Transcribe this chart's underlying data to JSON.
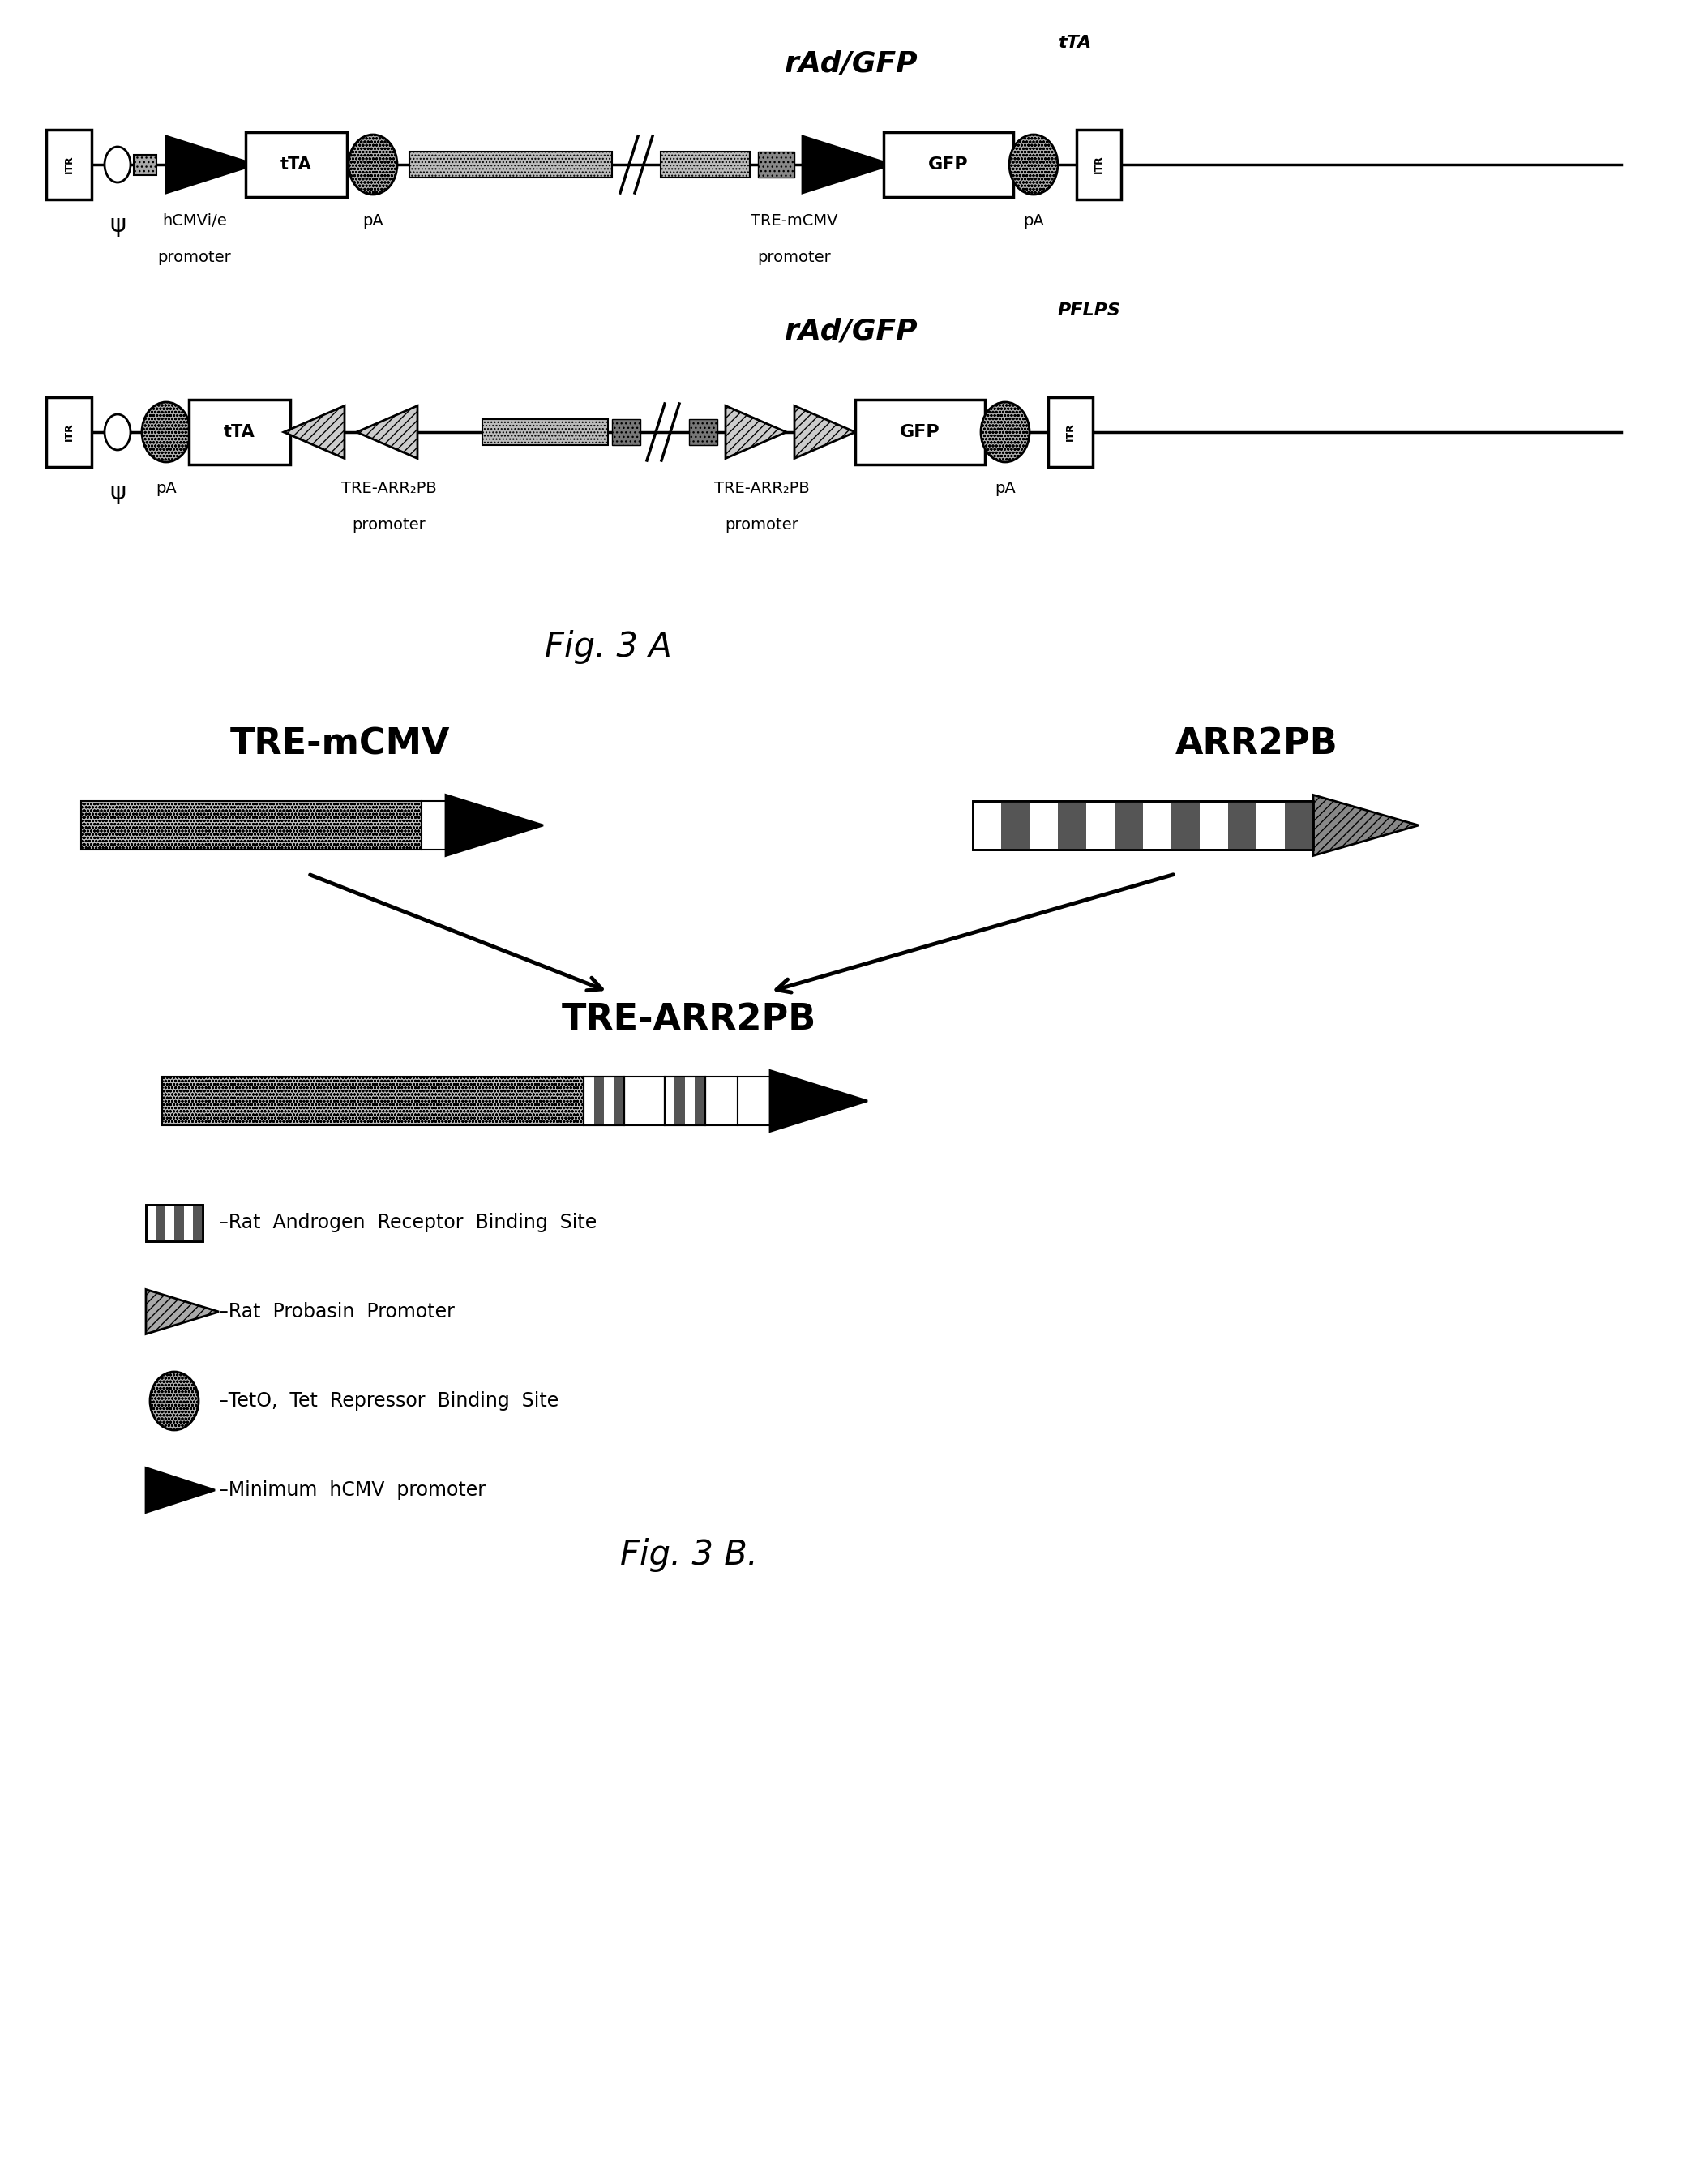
{
  "bg_color": "#ffffff",
  "title1": "rAd/GFP",
  "title1_sub": "tTA",
  "title2": "rAd/GFP",
  "title2_sub": "PFLPS",
  "figA_label": "Fig. 3 A",
  "figB_label1": "TRE-mCMV",
  "figB_label2": "ARR2PB",
  "figB_label3": "TRE-ARR2PB",
  "figB_label": "Fig. 3 B.",
  "legend1": "–Rat  Androgen  Receptor  Binding  Site",
  "legend2": "–Rat  Probasin  Promoter",
  "legend3": "–TetO,  Tet  Repressor  Binding  Site",
  "legend4": "–Minimum  hCMV  promoter"
}
